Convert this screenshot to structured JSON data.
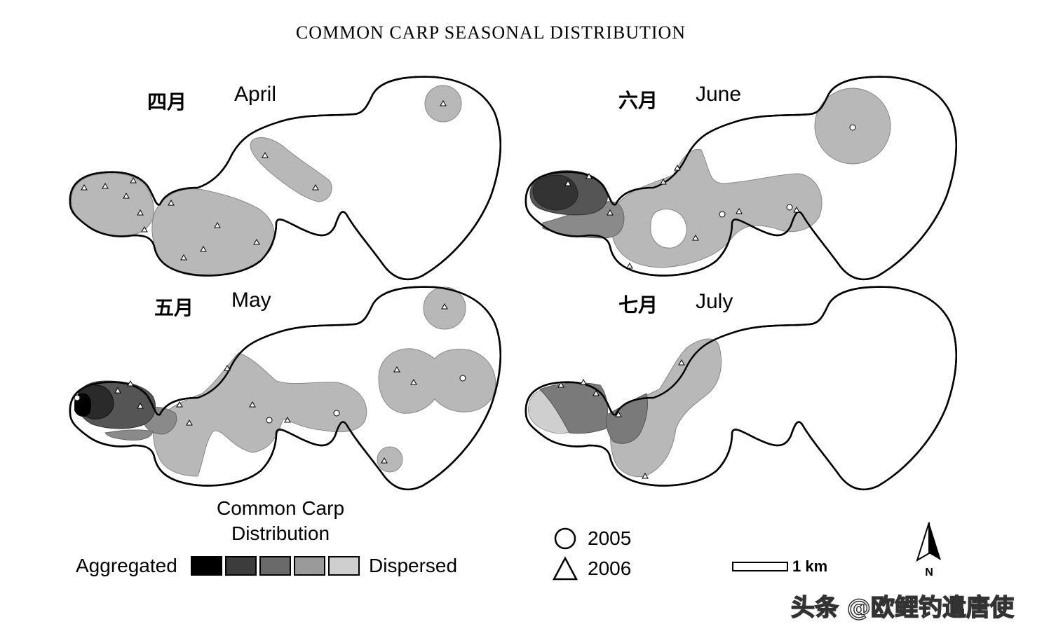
{
  "title": "COMMON CARP SEASONAL DISTRIBUTION",
  "panels": [
    {
      "cn": "四月",
      "en": "April"
    },
    {
      "cn": "六月",
      "en": "June"
    },
    {
      "cn": "五月",
      "en": "May"
    },
    {
      "cn": "七月",
      "en": "July"
    }
  ],
  "legend": {
    "title_line1": "Common Carp",
    "title_line2": "Distribution",
    "left_end": "Aggregated",
    "right_end": "Dispersed",
    "shades": [
      "#000000",
      "#3c3c3c",
      "#6a6a6a",
      "#9a9a9a",
      "#cfcfcf"
    ],
    "marker_2005": "2005",
    "marker_2006": "2006",
    "scale_label": "1 km",
    "north_label": "N"
  },
  "watermark": "头条 @欧鲤钓遣唐使"
}
